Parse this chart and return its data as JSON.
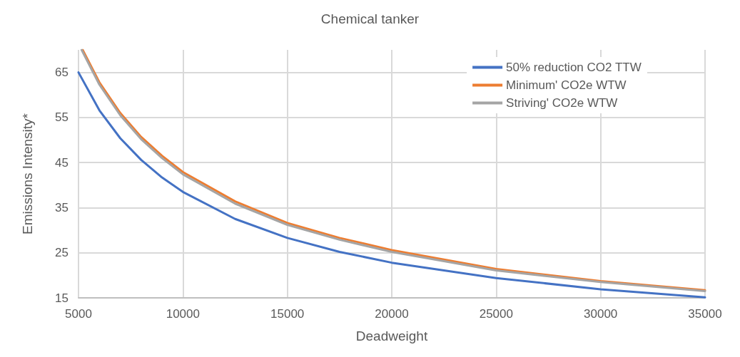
{
  "chart_data": {
    "type": "line",
    "title": "Chemical tanker",
    "xlabel": "Deadweight",
    "ylabel": "Emissions Intensity*",
    "xlim": [
      5000,
      35000
    ],
    "xticks": [
      5000,
      10000,
      15000,
      20000,
      25000,
      30000,
      35000
    ],
    "ylim": [
      15,
      70
    ],
    "yticks": [
      15,
      25,
      35,
      45,
      55,
      65
    ],
    "grid": true,
    "legend": "top right",
    "marker": "none",
    "line_style": "solid",
    "series": [
      {
        "name": "50% reduction CO2 TTW",
        "color": "#4472c4",
        "x": [
          5000,
          6000,
          7000,
          8000,
          9000,
          10000,
          12500,
          15000,
          17500,
          20000,
          25000,
          30000,
          35000
        ],
        "values": [
          65,
          56.6,
          50.4,
          45.6,
          41.7,
          38.5,
          32.5,
          28.3,
          25.2,
          22.8,
          19.4,
          16.9,
          15.1
        ]
      },
      {
        "name": "Minimum' CO2e WTW",
        "color": "#ed7d31",
        "x": [
          5200,
          6000,
          7000,
          8000,
          9000,
          10000,
          12500,
          15000,
          17500,
          20000,
          25000,
          30000,
          35000
        ],
        "values": [
          70,
          62.8,
          56.0,
          50.7,
          46.5,
          42.9,
          36.4,
          31.6,
          28.3,
          25.6,
          21.4,
          18.7,
          16.7
        ]
      },
      {
        "name": "Striving' CO2e WTW",
        "color": "#a5a5a5",
        "x": [
          5150,
          6000,
          7000,
          8000,
          9000,
          10000,
          12500,
          15000,
          17500,
          20000,
          25000,
          30000,
          35000
        ],
        "values": [
          70,
          62.3,
          55.5,
          50.2,
          46.0,
          42.4,
          35.9,
          31.2,
          27.9,
          25.2,
          21.1,
          18.5,
          16.5
        ]
      }
    ]
  }
}
